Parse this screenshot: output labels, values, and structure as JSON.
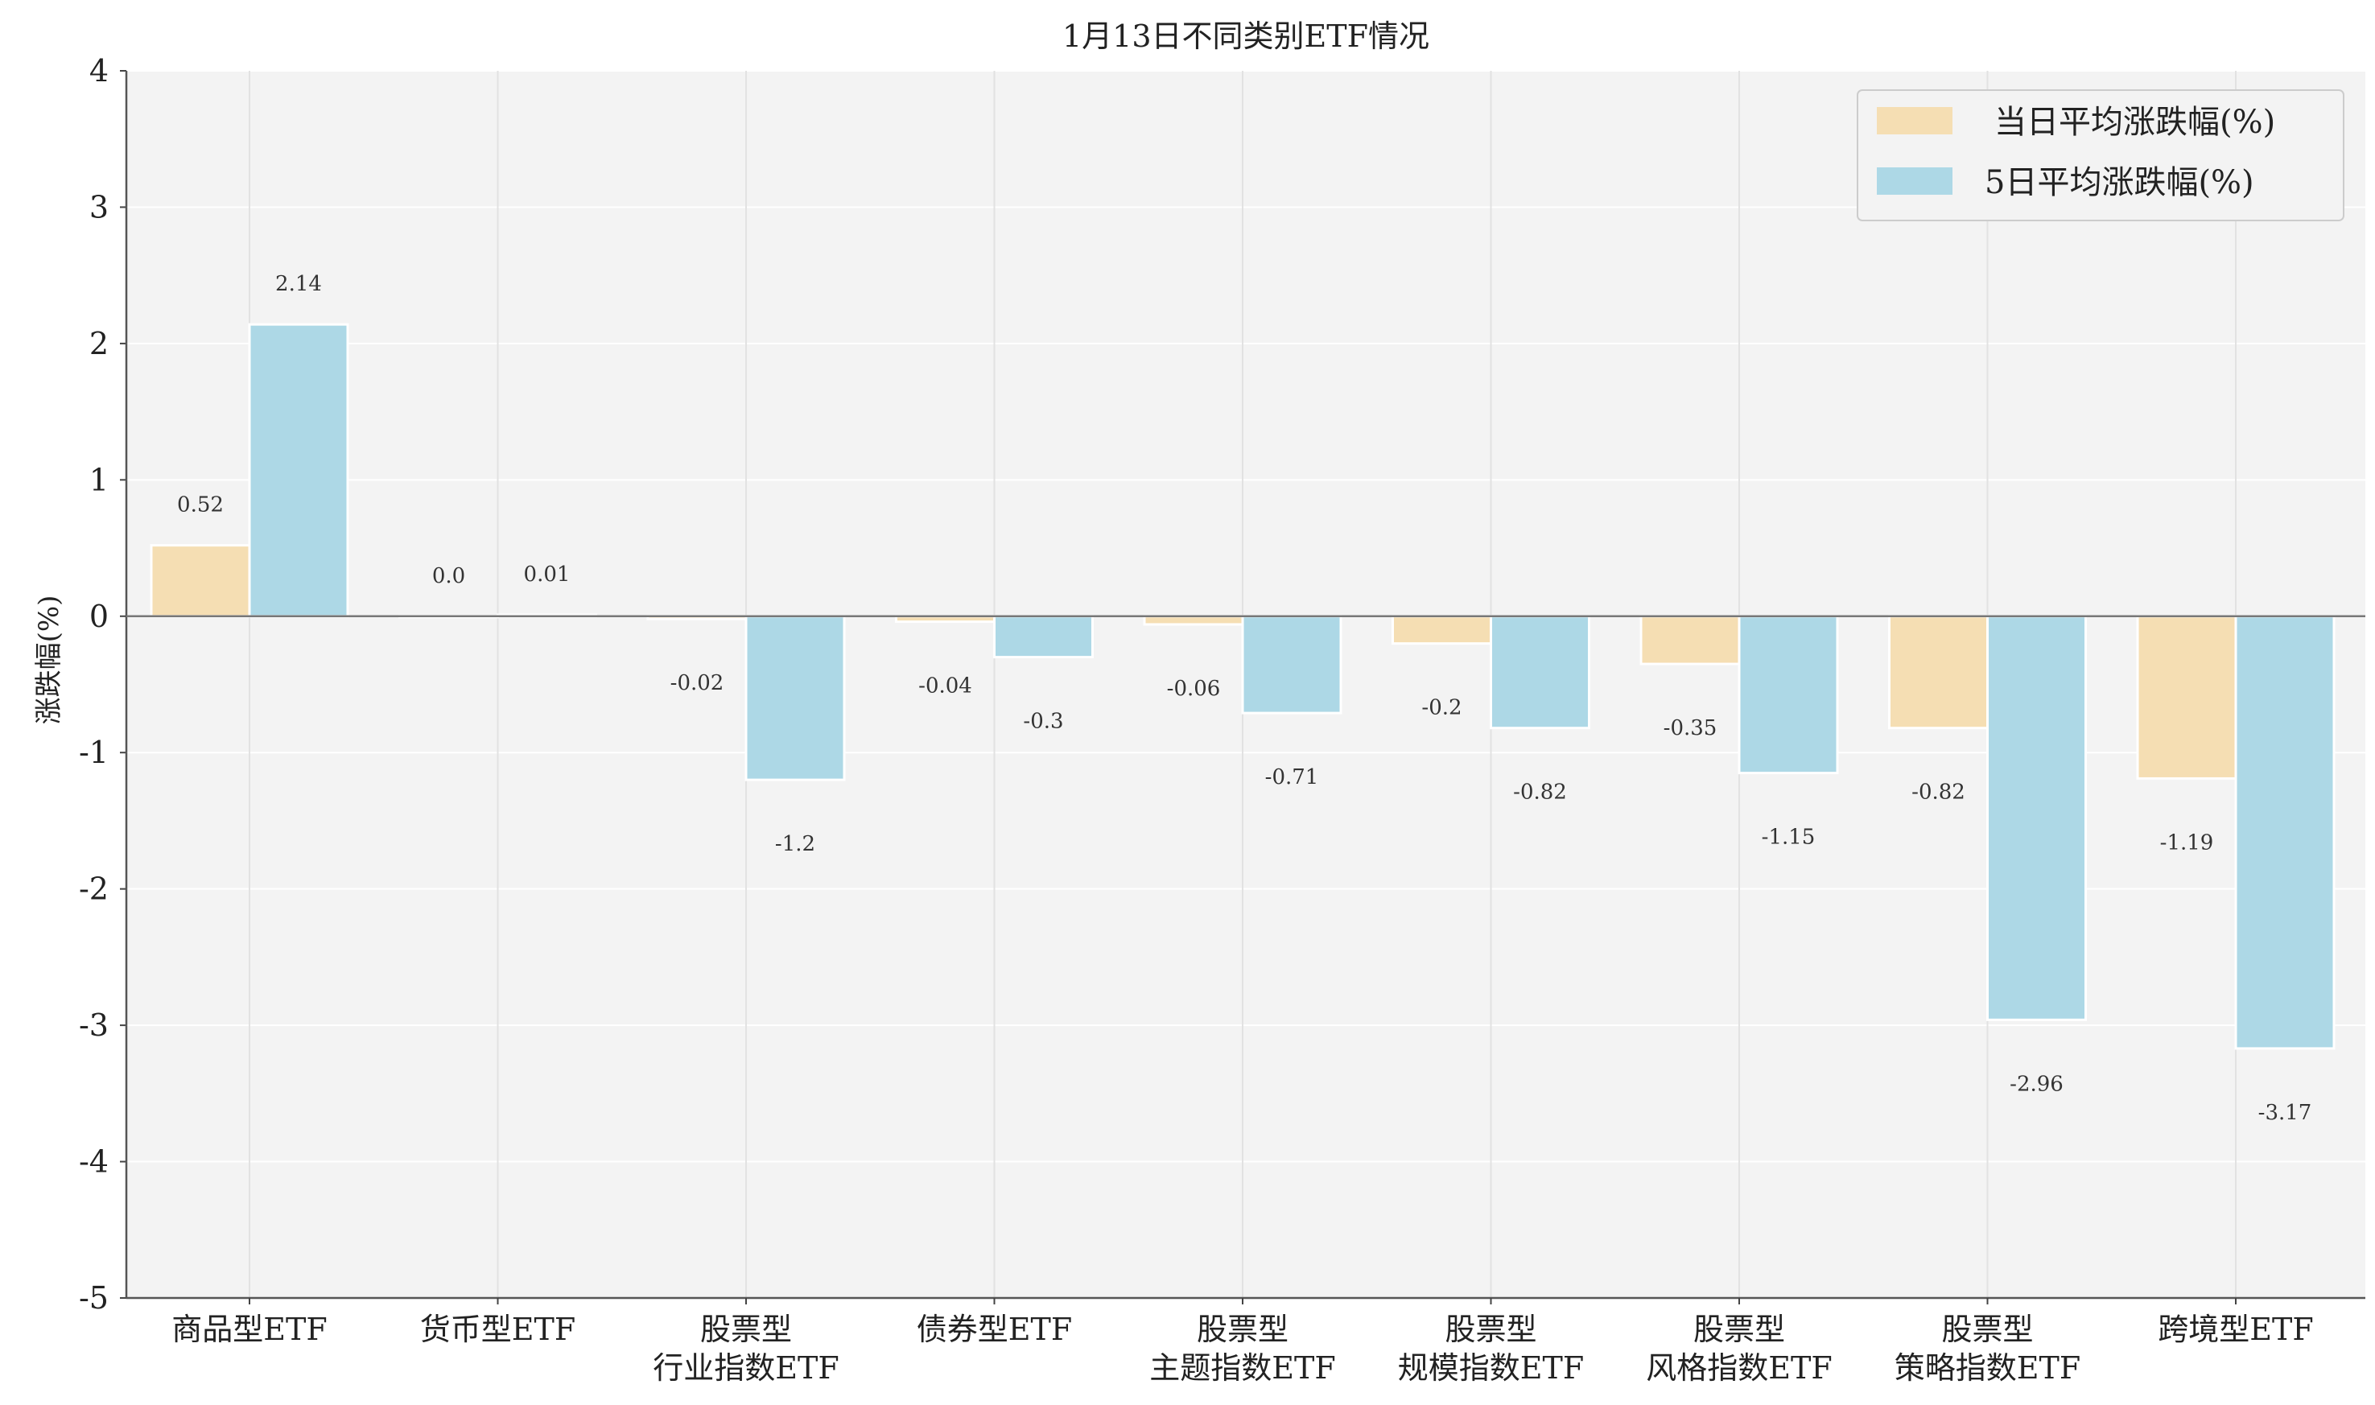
{
  "chart_data": {
    "type": "bar",
    "title": "1月13日不同类别ETF情况",
    "xlabel": "",
    "ylabel": "涨跌幅(%)",
    "ylim": [
      -5,
      4
    ],
    "yticks": [
      "4",
      "3",
      "2",
      "1",
      "0",
      "-1",
      "-2",
      "-3",
      "-4",
      "-5"
    ],
    "grid": true,
    "legend_position": "top-right",
    "categories": [
      [
        "商品型ETF"
      ],
      [
        "货币型ETF"
      ],
      [
        "股票型",
        "行业指数ETF"
      ],
      [
        "债券型ETF"
      ],
      [
        "股票型",
        "主题指数ETF"
      ],
      [
        "股票型",
        "规模指数ETF"
      ],
      [
        "股票型",
        "风格指数ETF"
      ],
      [
        "股票型",
        "策略指数ETF"
      ],
      [
        "跨境型ETF"
      ]
    ],
    "series": [
      {
        "name": "当日平均涨跌幅(%)",
        "color": "#f5deb3",
        "values": [
          0.52,
          0.0,
          -0.02,
          -0.04,
          -0.06,
          -0.2,
          -0.35,
          -0.82,
          -1.19
        ],
        "labels": [
          "0.52",
          "0.0",
          "-0.02",
          "-0.04",
          "-0.06",
          "-0.2",
          "-0.35",
          "-0.82",
          "-1.19"
        ]
      },
      {
        "name": "5日平均涨跌幅(%)",
        "color": "#add8e6",
        "values": [
          2.14,
          0.01,
          -1.2,
          -0.3,
          -0.71,
          -0.82,
          -1.15,
          -2.96,
          -3.17
        ],
        "labels": [
          "2.14",
          "0.01",
          "-1.2",
          "-0.3",
          "-0.71",
          "-0.82",
          "-1.15",
          "-2.96",
          "-3.17"
        ]
      }
    ]
  }
}
